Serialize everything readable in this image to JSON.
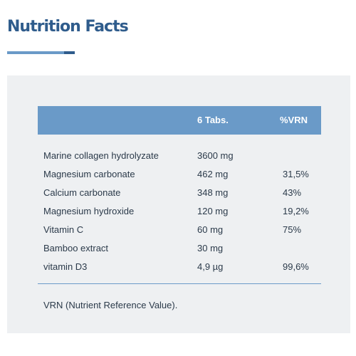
{
  "title": "Nutrition Facts",
  "colors": {
    "brand_dark": "#2f5c8c",
    "brand_light": "#6a9ac8",
    "panel_bg": "#eef0f2",
    "text": "#2b3a4a"
  },
  "table": {
    "headers": {
      "name": "",
      "amount": "6 Tabs.",
      "vrn": "%VRN"
    },
    "rows": [
      {
        "name": "Marine collagen hydrolyzate",
        "amount": "3600 mg",
        "vrn": ""
      },
      {
        "name": "Magnesium carbonate",
        "amount": "462 mg",
        "vrn": "31,5%"
      },
      {
        "name": "Calcium carbonate",
        "amount": "348 mg",
        "vrn": "43%"
      },
      {
        "name": "Magnesium hydroxide",
        "amount": "120 mg",
        "vrn": "19,2%"
      },
      {
        "name": "Vitamin C",
        "amount": "60 mg",
        "vrn": "75%"
      },
      {
        "name": "Bamboo extract",
        "amount": "30 mg",
        "vrn": ""
      },
      {
        "name": "vitamin D3",
        "amount": "4,9 µg",
        "vrn": "99,6%"
      }
    ]
  },
  "footnote": "VRN (Nutrient Reference Value)."
}
